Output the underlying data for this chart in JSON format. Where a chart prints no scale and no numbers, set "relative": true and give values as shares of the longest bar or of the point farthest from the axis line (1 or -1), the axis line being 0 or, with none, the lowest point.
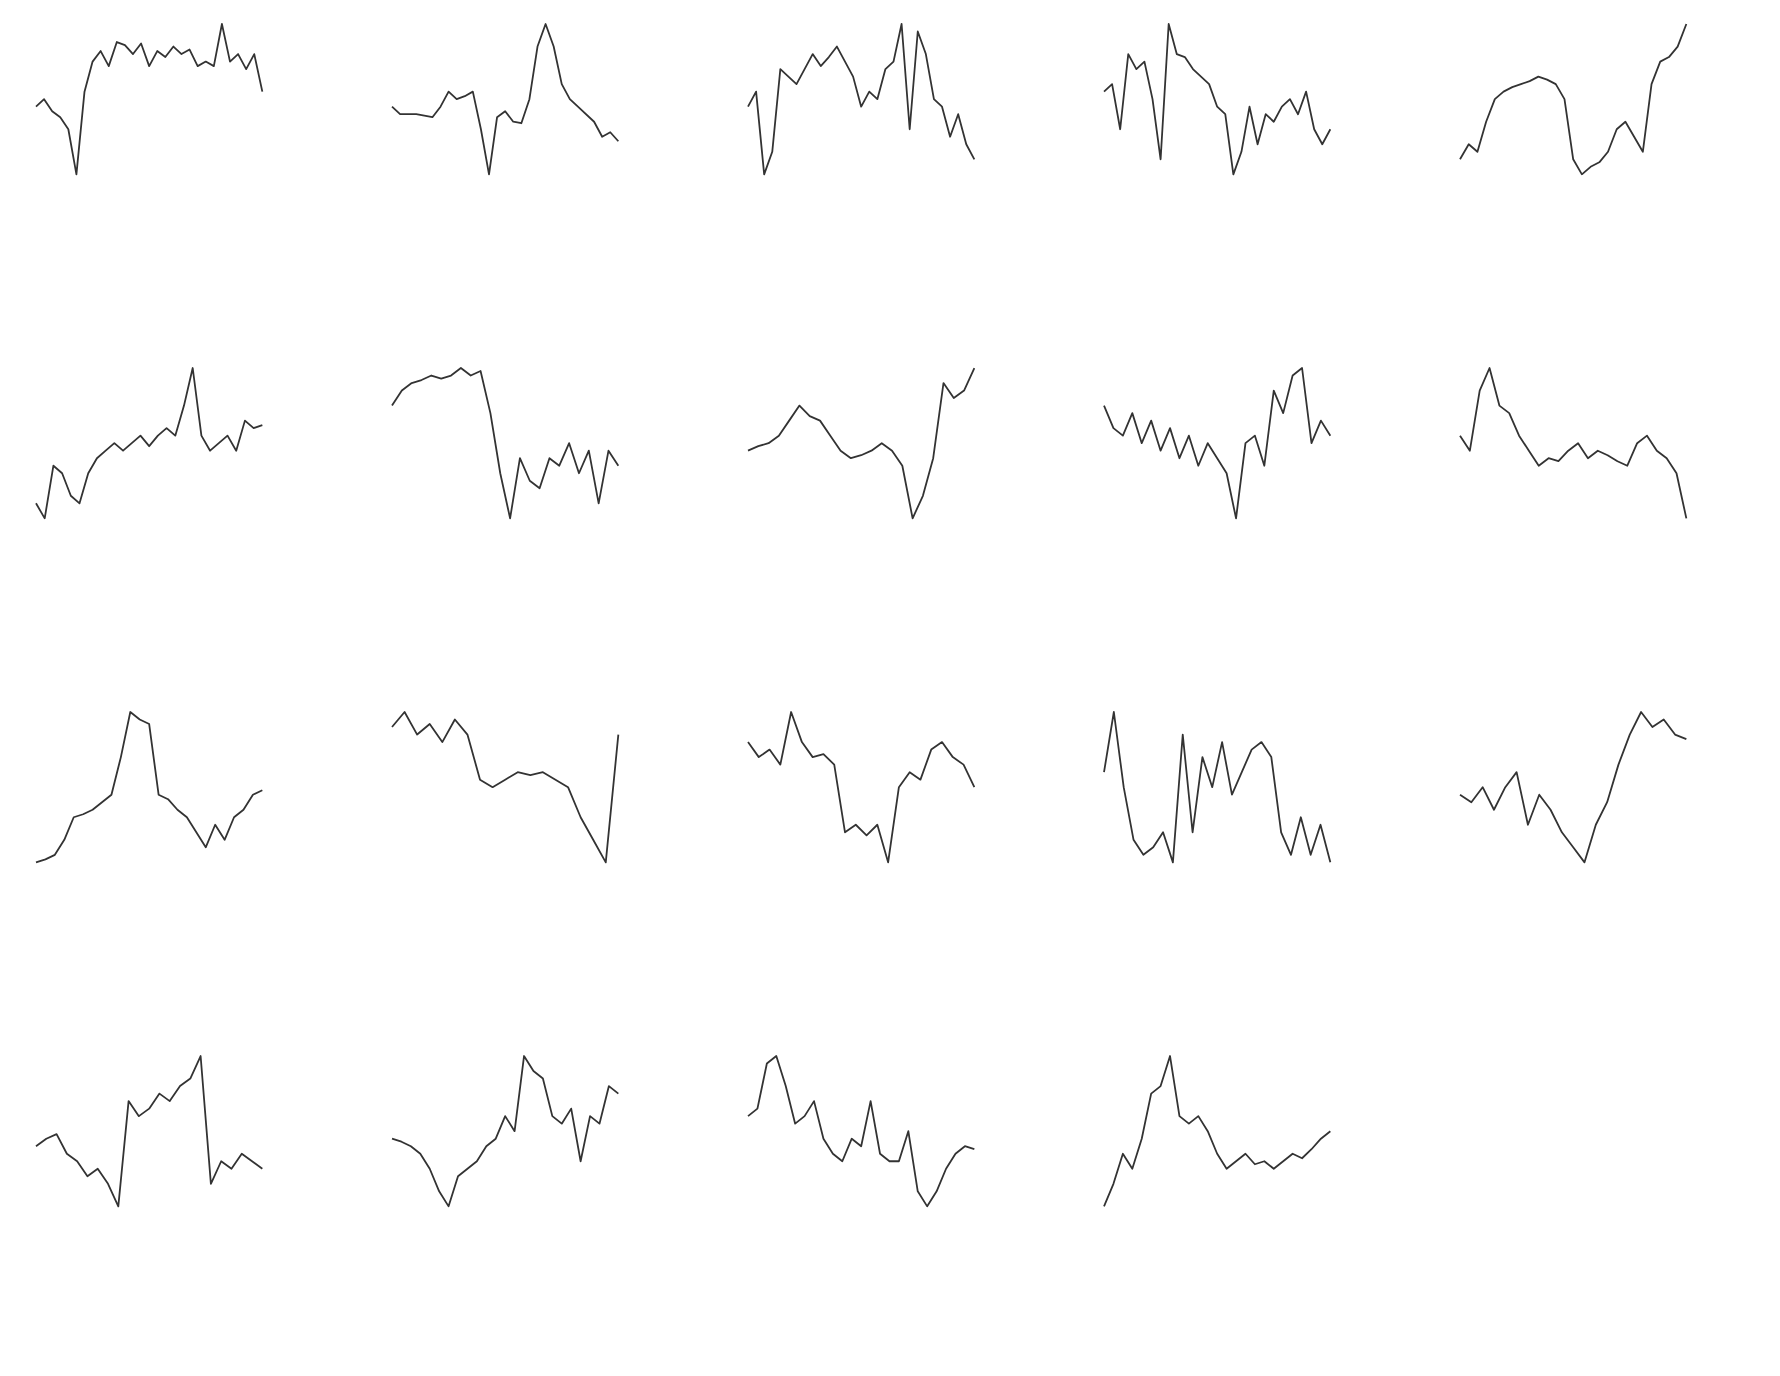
{
  "chart_data": [
    {
      "type": "line",
      "relative": true,
      "color": "#333333",
      "categories": [
        null,
        null,
        null,
        null,
        null,
        null,
        null,
        null,
        null,
        null,
        null,
        null,
        null,
        null,
        null,
        null,
        null,
        null,
        null,
        null,
        null,
        null,
        null,
        null,
        null,
        null,
        null,
        null,
        null
      ],
      "values": [
        0.45,
        0.5,
        0.42,
        0.38,
        0.3,
        0,
        0.55,
        0.75,
        0.82,
        0.72,
        0.88,
        0.86,
        0.8,
        0.87,
        0.72,
        0.82,
        0.78,
        0.85,
        0.8,
        0.83,
        0.72,
        0.75,
        0.72,
        1.0,
        0.75,
        0.8,
        0.7,
        0.8,
        0.55
      ]
    },
    {
      "type": "line",
      "relative": true,
      "color": "#333333",
      "categories": [
        null,
        null,
        null,
        null,
        null,
        null,
        null,
        null,
        null,
        null,
        null,
        null,
        null,
        null,
        null,
        null,
        null,
        null,
        null,
        null,
        null,
        null,
        null,
        null,
        null,
        null,
        null,
        null,
        null
      ],
      "values": [
        0.45,
        0.4,
        0.4,
        0.4,
        0.39,
        0.38,
        0.45,
        0.55,
        0.5,
        0.52,
        0.55,
        0.3,
        0.0,
        0.38,
        0.42,
        0.35,
        0.34,
        0.5,
        0.85,
        1.0,
        0.85,
        0.6,
        0.5,
        0.45,
        0.4,
        0.35,
        0.25,
        0.28,
        0.22
      ]
    },
    {
      "type": "line",
      "relative": true,
      "color": "#333333",
      "categories": [
        null,
        null,
        null,
        null,
        null,
        null,
        null,
        null,
        null,
        null,
        null,
        null,
        null,
        null,
        null,
        null,
        null,
        null,
        null,
        null,
        null,
        null,
        null,
        null,
        null,
        null,
        null,
        null,
        null
      ],
      "values": [
        0.45,
        0.55,
        0.0,
        0.15,
        0.7,
        0.65,
        0.6,
        0.7,
        0.8,
        0.72,
        0.78,
        0.85,
        0.75,
        0.65,
        0.45,
        0.55,
        0.5,
        0.7,
        0.75,
        1.0,
        0.3,
        0.95,
        0.8,
        0.5,
        0.45,
        0.25,
        0.4,
        0.2,
        0.1
      ]
    },
    {
      "type": "line",
      "relative": true,
      "color": "#333333",
      "categories": [
        null,
        null,
        null,
        null,
        null,
        null,
        null,
        null,
        null,
        null,
        null,
        null,
        null,
        null,
        null,
        null,
        null,
        null,
        null,
        null,
        null,
        null,
        null,
        null,
        null,
        null,
        null,
        null,
        null
      ],
      "values": [
        0.55,
        0.6,
        0.3,
        0.8,
        0.7,
        0.75,
        0.5,
        0.1,
        1.0,
        0.8,
        0.78,
        0.7,
        0.65,
        0.6,
        0.45,
        0.4,
        0.0,
        0.15,
        0.45,
        0.2,
        0.4,
        0.35,
        0.45,
        0.5,
        0.4,
        0.55,
        0.3,
        0.2,
        0.3
      ]
    },
    {
      "type": "line",
      "relative": true,
      "color": "#333333",
      "categories": [
        null,
        null,
        null,
        null,
        null,
        null,
        null,
        null,
        null,
        null,
        null,
        null,
        null,
        null,
        null,
        null,
        null,
        null,
        null,
        null,
        null,
        null,
        null,
        null,
        null,
        null,
        null
      ],
      "values": [
        0.1,
        0.2,
        0.15,
        0.35,
        0.5,
        0.55,
        0.58,
        0.6,
        0.62,
        0.65,
        0.63,
        0.6,
        0.5,
        0.1,
        0.0,
        0.05,
        0.08,
        0.15,
        0.3,
        0.35,
        0.25,
        0.15,
        0.6,
        0.75,
        0.78,
        0.85,
        1.0
      ]
    },
    {
      "type": "line",
      "relative": true,
      "color": "#333333",
      "categories": [
        null,
        null,
        null,
        null,
        null,
        null,
        null,
        null,
        null,
        null,
        null,
        null,
        null,
        null,
        null,
        null,
        null,
        null,
        null,
        null,
        null,
        null,
        null,
        null,
        null,
        null,
        null
      ],
      "values": [
        0.1,
        0.0,
        0.35,
        0.3,
        0.15,
        0.1,
        0.3,
        0.4,
        0.45,
        0.5,
        0.45,
        0.5,
        0.55,
        0.48,
        0.55,
        0.6,
        0.55,
        0.75,
        1.0,
        0.55,
        0.45,
        0.5,
        0.55,
        0.45,
        0.65,
        0.6,
        0.62
      ]
    },
    {
      "type": "line",
      "relative": true,
      "color": "#333333",
      "categories": [
        null,
        null,
        null,
        null,
        null,
        null,
        null,
        null,
        null,
        null,
        null,
        null,
        null,
        null,
        null,
        null,
        null,
        null,
        null,
        null,
        null,
        null,
        null,
        null
      ],
      "values": [
        0.75,
        0.85,
        0.9,
        0.92,
        0.95,
        0.93,
        0.95,
        1.0,
        0.95,
        0.98,
        0.7,
        0.3,
        0.0,
        0.4,
        0.25,
        0.2,
        0.4,
        0.35,
        0.5,
        0.3,
        0.45,
        0.1,
        0.45,
        0.35
      ]
    },
    {
      "type": "line",
      "relative": true,
      "color": "#333333",
      "categories": [
        null,
        null,
        null,
        null,
        null,
        null,
        null,
        null,
        null,
        null,
        null,
        null,
        null,
        null,
        null,
        null,
        null,
        null,
        null,
        null,
        null,
        null,
        null
      ],
      "values": [
        0.45,
        0.48,
        0.5,
        0.55,
        0.65,
        0.75,
        0.68,
        0.65,
        0.55,
        0.45,
        0.4,
        0.42,
        0.45,
        0.5,
        0.45,
        0.35,
        0.0,
        0.15,
        0.4,
        0.9,
        0.8,
        0.85,
        1.0
      ]
    },
    {
      "type": "line",
      "relative": true,
      "color": "#333333",
      "categories": [
        null,
        null,
        null,
        null,
        null,
        null,
        null,
        null,
        null,
        null,
        null,
        null,
        null,
        null,
        null,
        null,
        null,
        null,
        null,
        null,
        null,
        null,
        null,
        null,
        null
      ],
      "values": [
        0.75,
        0.6,
        0.55,
        0.7,
        0.5,
        0.65,
        0.45,
        0.6,
        0.4,
        0.55,
        0.35,
        0.5,
        0.4,
        0.3,
        0.0,
        0.5,
        0.55,
        0.35,
        0.85,
        0.7,
        0.95,
        1.0,
        0.5,
        0.65,
        0.55
      ]
    },
    {
      "type": "line",
      "relative": true,
      "color": "#333333",
      "categories": [
        null,
        null,
        null,
        null,
        null,
        null,
        null,
        null,
        null,
        null,
        null,
        null,
        null,
        null,
        null,
        null,
        null,
        null,
        null,
        null,
        null,
        null,
        null,
        null
      ],
      "values": [
        0.55,
        0.45,
        0.85,
        1.0,
        0.75,
        0.7,
        0.55,
        0.45,
        0.35,
        0.4,
        0.38,
        0.45,
        0.5,
        0.4,
        0.45,
        0.42,
        0.38,
        0.35,
        0.5,
        0.55,
        0.45,
        0.4,
        0.3,
        0.0
      ]
    },
    {
      "type": "line",
      "relative": true,
      "color": "#333333",
      "categories": [
        null,
        null,
        null,
        null,
        null,
        null,
        null,
        null,
        null,
        null,
        null,
        null,
        null,
        null,
        null,
        null,
        null,
        null,
        null,
        null,
        null,
        null,
        null,
        null,
        null
      ],
      "values": [
        0.0,
        0.02,
        0.05,
        0.15,
        0.3,
        0.32,
        0.35,
        0.4,
        0.45,
        0.7,
        1.0,
        0.95,
        0.92,
        0.45,
        0.42,
        0.35,
        0.3,
        0.2,
        0.1,
        0.25,
        0.15,
        0.3,
        0.35,
        0.45,
        0.48
      ]
    },
    {
      "type": "line",
      "relative": true,
      "color": "#333333",
      "categories": [
        null,
        null,
        null,
        null,
        null,
        null,
        null,
        null,
        null,
        null,
        null,
        null,
        null,
        null,
        null,
        null,
        null,
        null,
        null
      ],
      "values": [
        0.9,
        1.0,
        0.85,
        0.92,
        0.8,
        0.95,
        0.85,
        0.55,
        0.5,
        0.55,
        0.6,
        0.58,
        0.6,
        0.55,
        0.5,
        0.3,
        0.15,
        0.0,
        0.85
      ]
    },
    {
      "type": "line",
      "relative": true,
      "color": "#333333",
      "categories": [
        null,
        null,
        null,
        null,
        null,
        null,
        null,
        null,
        null,
        null,
        null,
        null,
        null,
        null,
        null,
        null,
        null,
        null,
        null,
        null,
        null,
        null
      ],
      "values": [
        0.8,
        0.7,
        0.75,
        0.65,
        1.0,
        0.8,
        0.7,
        0.72,
        0.65,
        0.2,
        0.25,
        0.18,
        0.25,
        0.0,
        0.5,
        0.6,
        0.55,
        0.75,
        0.8,
        0.7,
        0.65,
        0.5
      ]
    },
    {
      "type": "line",
      "relative": true,
      "color": "#333333",
      "categories": [
        null,
        null,
        null,
        null,
        null,
        null,
        null,
        null,
        null,
        null,
        null,
        null,
        null,
        null,
        null,
        null,
        null,
        null,
        null,
        null,
        null,
        null,
        null,
        null
      ],
      "values": [
        0.6,
        1.0,
        0.5,
        0.15,
        0.05,
        0.1,
        0.2,
        0.0,
        0.85,
        0.2,
        0.7,
        0.5,
        0.8,
        0.45,
        0.6,
        0.75,
        0.8,
        0.7,
        0.2,
        0.05,
        0.3,
        0.05,
        0.25,
        0.0
      ]
    },
    {
      "type": "line",
      "relative": true,
      "color": "#333333",
      "categories": [
        null,
        null,
        null,
        null,
        null,
        null,
        null,
        null,
        null,
        null,
        null,
        null,
        null,
        null,
        null,
        null,
        null,
        null,
        null,
        null,
        null
      ],
      "values": [
        0.45,
        0.4,
        0.5,
        0.35,
        0.5,
        0.6,
        0.25,
        0.45,
        0.35,
        0.2,
        0.1,
        0.0,
        0.25,
        0.4,
        0.65,
        0.85,
        1.0,
        0.9,
        0.95,
        0.85,
        0.82
      ]
    },
    {
      "type": "line",
      "relative": true,
      "color": "#333333",
      "categories": [
        null,
        null,
        null,
        null,
        null,
        null,
        null,
        null,
        null,
        null,
        null,
        null,
        null,
        null,
        null,
        null,
        null,
        null,
        null,
        null,
        null,
        null,
        null
      ],
      "values": [
        0.4,
        0.45,
        0.48,
        0.35,
        0.3,
        0.2,
        0.25,
        0.15,
        0.0,
        0.7,
        0.6,
        0.65,
        0.75,
        0.7,
        0.8,
        0.85,
        1.0,
        0.15,
        0.3,
        0.25,
        0.35,
        0.3,
        0.25
      ]
    },
    {
      "type": "line",
      "relative": true,
      "color": "#333333",
      "categories": [
        null,
        null,
        null,
        null,
        null,
        null,
        null,
        null,
        null,
        null,
        null,
        null,
        null,
        null,
        null,
        null,
        null,
        null,
        null,
        null,
        null,
        null,
        null,
        null,
        null
      ],
      "values": [
        0.45,
        0.43,
        0.4,
        0.35,
        0.25,
        0.1,
        0.0,
        0.2,
        0.25,
        0.3,
        0.4,
        0.45,
        0.6,
        0.5,
        1.0,
        0.9,
        0.85,
        0.6,
        0.55,
        0.65,
        0.3,
        0.6,
        0.55,
        0.8,
        0.75
      ]
    },
    {
      "type": "line",
      "relative": true,
      "color": "#333333",
      "categories": [
        null,
        null,
        null,
        null,
        null,
        null,
        null,
        null,
        null,
        null,
        null,
        null,
        null,
        null,
        null,
        null,
        null,
        null,
        null,
        null,
        null,
        null,
        null,
        null,
        null
      ],
      "values": [
        0.6,
        0.65,
        0.95,
        1.0,
        0.8,
        0.55,
        0.6,
        0.7,
        0.45,
        0.35,
        0.3,
        0.45,
        0.4,
        0.7,
        0.35,
        0.3,
        0.3,
        0.5,
        0.1,
        0.0,
        0.1,
        0.25,
        0.35,
        0.4,
        0.38
      ]
    },
    {
      "type": "line",
      "relative": true,
      "color": "#333333",
      "categories": [
        null,
        null,
        null,
        null,
        null,
        null,
        null,
        null,
        null,
        null,
        null,
        null,
        null,
        null,
        null,
        null,
        null,
        null,
        null,
        null,
        null,
        null,
        null,
        null,
        null
      ],
      "values": [
        0.0,
        0.15,
        0.35,
        0.25,
        0.45,
        0.75,
        0.8,
        1.0,
        0.6,
        0.55,
        0.6,
        0.5,
        0.35,
        0.25,
        0.3,
        0.35,
        0.28,
        0.3,
        0.25,
        0.3,
        0.35,
        0.32,
        0.38,
        0.45,
        0.5
      ]
    }
  ]
}
